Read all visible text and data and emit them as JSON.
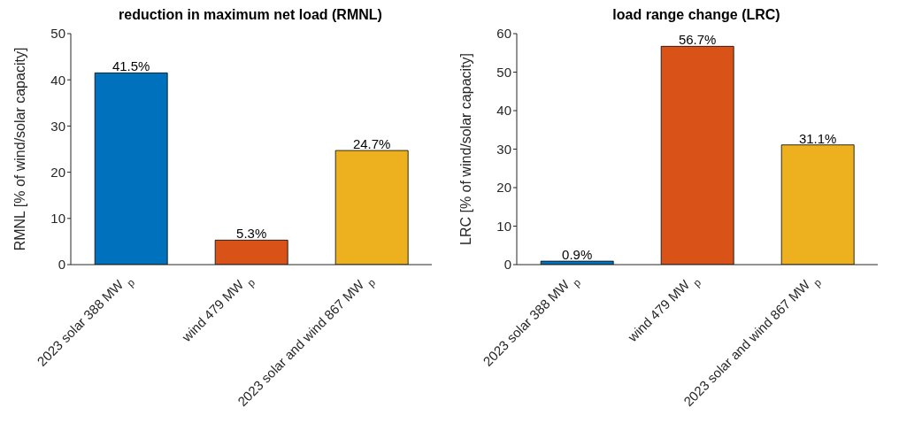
{
  "chart_data": [
    {
      "type": "bar",
      "title": "reduction in maximum net load (RMNL)",
      "ylabel": "RMNL [% of wind/solar capacity]",
      "categories": [
        "2023 solar   388 MW $_{p}$",
        "wind   479 MW $_{p}$",
        "2023 solar and wind   867 MW $_{p}$"
      ],
      "values": [
        41.5,
        5.3,
        24.7
      ],
      "colors": [
        "#0072bd",
        "#d95319",
        "#edb120"
      ],
      "value_labels": [
        "41.5%",
        "5.3%",
        "24.7%"
      ],
      "ylim": [
        0,
        50
      ],
      "yticks": [
        0,
        10,
        20,
        30,
        40,
        50
      ],
      "grid": false,
      "legend": false
    },
    {
      "type": "bar",
      "title": "load range change (LRC)",
      "ylabel": "LRC [% of wind/solar capacity]",
      "categories": [
        "2023 solar   388 MW $_{p}$",
        "wind   479 MW $_{p}$",
        "2023 solar and wind   867 MW $_{p}$"
      ],
      "values": [
        0.9,
        56.7,
        31.1
      ],
      "colors": [
        "#0072bd",
        "#d95319",
        "#edb120"
      ],
      "value_labels": [
        "0.9%",
        "56.7%",
        "31.1%"
      ],
      "ylim": [
        0,
        60
      ],
      "yticks": [
        0,
        10,
        20,
        30,
        40,
        50,
        60
      ],
      "grid": false,
      "legend": false
    }
  ]
}
